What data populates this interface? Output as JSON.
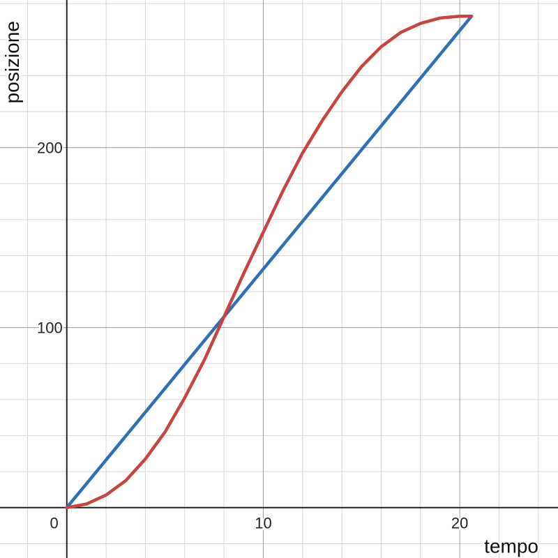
{
  "chart_data": {
    "type": "line",
    "title": "",
    "xlabel": "tempo",
    "ylabel": "posizione",
    "xlim": [
      -3.4,
      25
    ],
    "ylim": [
      -28,
      282
    ],
    "x_major_step": 10,
    "x_minor_step": 2,
    "y_major_step": 100,
    "y_minor_step": 20,
    "x_tick_labels": [
      "0",
      "10",
      "20"
    ],
    "y_tick_labels": [
      "100",
      "200"
    ],
    "grid": true,
    "series": [
      {
        "color": "#2d70b3",
        "x": [
          0,
          20.6
        ],
        "y": [
          0,
          273
        ]
      },
      {
        "color": "#c74440",
        "x": [
          0,
          1,
          2,
          3,
          4,
          5,
          6,
          7,
          8,
          9,
          10,
          11,
          12,
          13,
          14,
          15,
          16,
          17,
          18,
          19,
          20,
          20.6
        ],
        "y": [
          0,
          2,
          7,
          15,
          27,
          42,
          61,
          82,
          106,
          130,
          153,
          176,
          197,
          215,
          231,
          245,
          256,
          264,
          269,
          272,
          273,
          273
        ]
      }
    ]
  }
}
